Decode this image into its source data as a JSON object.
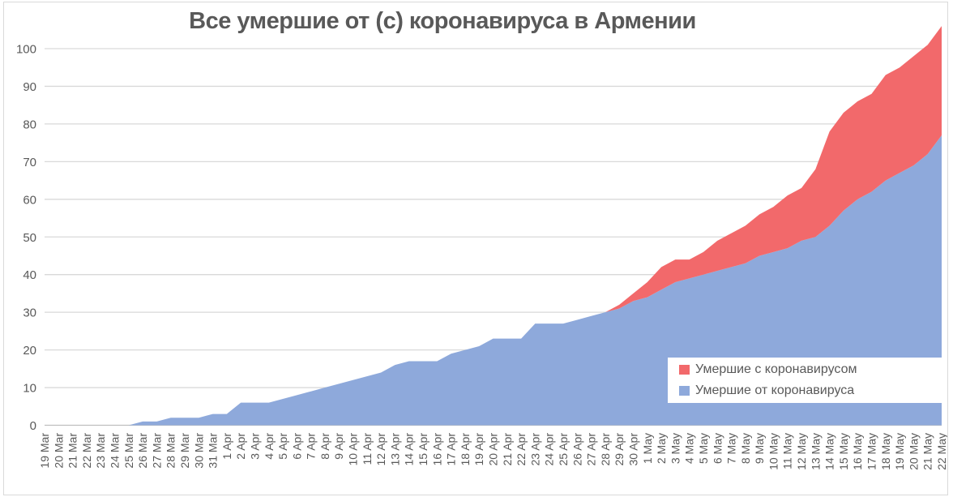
{
  "title": "Все умершие от (с) коронавируса в Армении",
  "legend": {
    "items": [
      {
        "label": "Умершие с коронавирусом",
        "color": "#f2696b"
      },
      {
        "label": "Умершие от коронавируса",
        "color": "#8ea9db"
      }
    ]
  },
  "colors": {
    "died_with": "#f2696b",
    "died_from": "#8ea9db",
    "gridline": "#d9d9d9",
    "axis_line": "#bfbfbf",
    "text": "#595959"
  },
  "chart_data": {
    "type": "area",
    "stacked": true,
    "title": "Все умершие от (с) коронавируса в Армении",
    "xlabel": "",
    "ylabel": "",
    "ylim": [
      0,
      110
    ],
    "yticks": [
      0,
      10,
      20,
      30,
      40,
      50,
      60,
      70,
      80,
      90,
      100
    ],
    "grid": true,
    "legend_position": "inside-bottom-right",
    "x": [
      "19 Mar",
      "20 Mar",
      "21 Mar",
      "22 Mar",
      "23 Mar",
      "24 Mar",
      "25 Mar",
      "26 Mar",
      "27 Mar",
      "28 Mar",
      "29 Mar",
      "30 Mar",
      "31 Mar",
      "1 Apr",
      "2 Apr",
      "3 Apr",
      "4 Apr",
      "5 Apr",
      "6 Apr",
      "7 Apr",
      "8 Apr",
      "9 Apr",
      "10 Apr",
      "11 Apr",
      "12 Apr",
      "13 Apr",
      "14 Apr",
      "15 Apr",
      "16 Apr",
      "17 Apr",
      "18 Apr",
      "19 Apr",
      "20 Apr",
      "21 Apr",
      "22 Apr",
      "23 Apr",
      "24 Apr",
      "25 Apr",
      "26 Apr",
      "27 Apr",
      "28 Apr",
      "29 Apr",
      "30 Apr",
      "1 May",
      "2 May",
      "3 May",
      "4 May",
      "5 May",
      "6 May",
      "7 May",
      "8 May",
      "9 May",
      "10 May",
      "11 May",
      "12 May",
      "13 May",
      "14 May",
      "15 May",
      "16 May",
      "17 May",
      "18 May",
      "19 May",
      "20 May",
      "21 May",
      "22 May"
    ],
    "series": [
      {
        "name": "Умершие от коронавируса",
        "color": "#8ea9db",
        "values": [
          0,
          0,
          0,
          0,
          0,
          0,
          0,
          1,
          1,
          2,
          2,
          2,
          3,
          3,
          6,
          6,
          6,
          7,
          8,
          9,
          10,
          11,
          12,
          13,
          14,
          16,
          17,
          17,
          17,
          19,
          20,
          21,
          23,
          23,
          23,
          27,
          27,
          27,
          28,
          29,
          30,
          31,
          33,
          34,
          36,
          38,
          39,
          40,
          41,
          42,
          43,
          45,
          46,
          47,
          49,
          50,
          53,
          57,
          60,
          62,
          65,
          67,
          69,
          72,
          77
        ]
      },
      {
        "name": "Умершие с коронавирусом",
        "color": "#f2696b",
        "values": [
          0,
          0,
          0,
          0,
          0,
          0,
          0,
          0,
          0,
          0,
          0,
          0,
          0,
          0,
          0,
          0,
          0,
          0,
          0,
          0,
          0,
          0,
          0,
          0,
          0,
          0,
          0,
          0,
          0,
          0,
          0,
          0,
          0,
          0,
          0,
          0,
          0,
          0,
          0,
          0,
          0,
          1,
          2,
          4,
          6,
          6,
          5,
          6,
          8,
          9,
          10,
          11,
          12,
          14,
          14,
          18,
          25,
          26,
          26,
          26,
          28,
          28,
          29,
          29,
          29
        ]
      }
    ]
  }
}
